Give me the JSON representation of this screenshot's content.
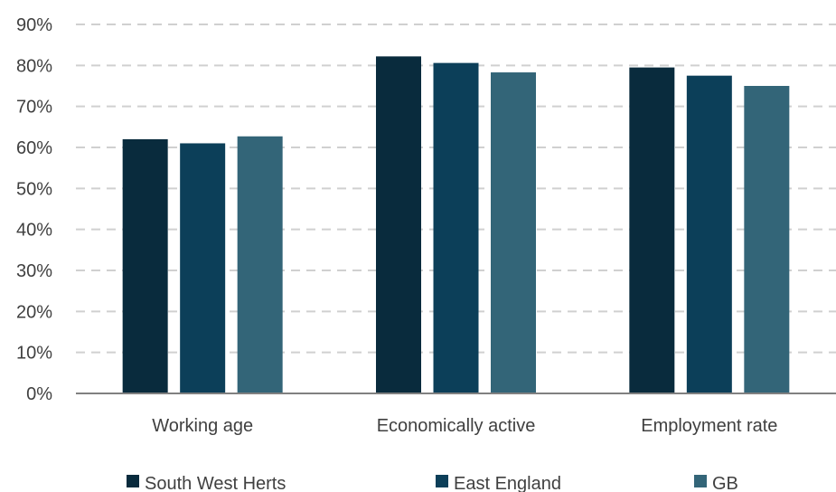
{
  "chart_data": {
    "type": "bar",
    "title": "",
    "xlabel": "",
    "ylabel": "",
    "categories": [
      "Working age",
      "Economically active",
      "Employment rate"
    ],
    "series": [
      {
        "name": "South West Herts",
        "values": [
          62,
          82.2,
          79.5
        ],
        "color": "#092b3d"
      },
      {
        "name": "East England",
        "values": [
          61,
          80.6,
          77.5
        ],
        "color": "#0c3f59"
      },
      {
        "name": "GB",
        "values": [
          62.7,
          78.3,
          75
        ],
        "color": "#336578"
      }
    ],
    "ylim": [
      0,
      90
    ],
    "y_ticks": [
      0,
      10,
      20,
      30,
      40,
      50,
      60,
      70,
      80,
      90
    ],
    "y_tick_labels": [
      "0%",
      "10%",
      "20%",
      "30%",
      "40%",
      "50%",
      "60%",
      "70%",
      "80%",
      "90%"
    ],
    "grid": true,
    "legend_position": "bottom"
  }
}
